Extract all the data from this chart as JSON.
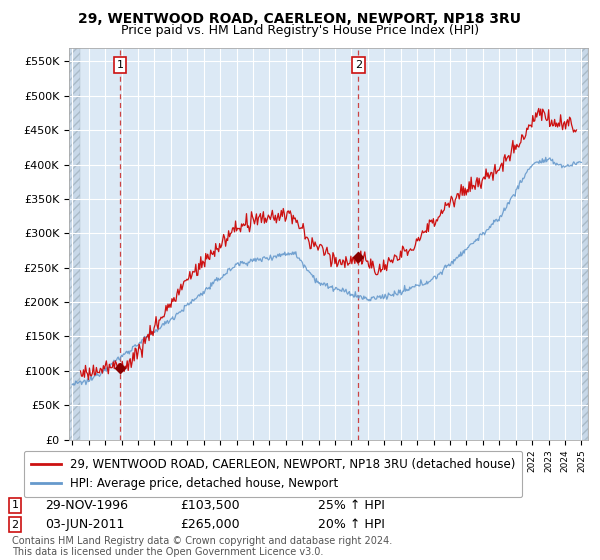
{
  "title_line1": "29, WENTWOOD ROAD, CAERLEON, NEWPORT, NP18 3RU",
  "title_line2": "Price paid vs. HM Land Registry's House Price Index (HPI)",
  "ylim": [
    0,
    570000
  ],
  "yticks": [
    0,
    50000,
    100000,
    150000,
    200000,
    250000,
    300000,
    350000,
    400000,
    450000,
    500000,
    550000
  ],
  "ytick_labels": [
    "£0",
    "£50K",
    "£100K",
    "£150K",
    "£200K",
    "£250K",
    "£300K",
    "£350K",
    "£400K",
    "£450K",
    "£500K",
    "£550K"
  ],
  "background_color": "#ffffff",
  "plot_bg_color": "#dce9f5",
  "grid_color": "#ffffff",
  "hpi_color": "#6699cc",
  "price_color": "#cc1111",
  "marker_color": "#880000",
  "sale1_date": 1996.91,
  "sale1_price": 103500,
  "sale2_date": 2011.42,
  "sale2_price": 265000,
  "legend_entry1": "29, WENTWOOD ROAD, CAERLEON, NEWPORT, NP18 3RU (detached house)",
  "legend_entry2": "HPI: Average price, detached house, Newport",
  "annotation1_date": "29-NOV-1996",
  "annotation1_price": "£103,500",
  "annotation1_pct": "25% ↑ HPI",
  "annotation2_date": "03-JUN-2011",
  "annotation2_price": "£265,000",
  "annotation2_pct": "20% ↑ HPI",
  "footer": "Contains HM Land Registry data © Crown copyright and database right 2024.\nThis data is licensed under the Open Government Licence v3.0.",
  "title_fontsize": 10,
  "subtitle_fontsize": 9,
  "tick_fontsize": 8,
  "legend_fontsize": 8.5,
  "annotation_fontsize": 9
}
